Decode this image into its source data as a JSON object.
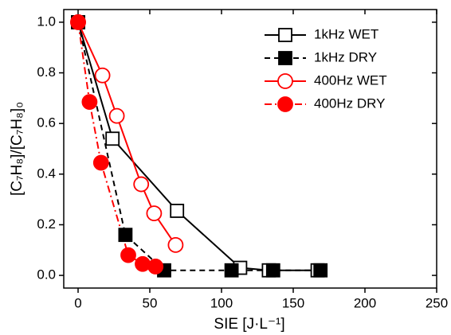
{
  "chart_data": {
    "type": "line",
    "x_label": "SIE [J·L⁻¹]",
    "y_label": "[C₇H₈]/[C₇H₈]₀",
    "xlim": [
      -10,
      250
    ],
    "xticks": [
      0,
      50,
      100,
      150,
      200,
      250
    ],
    "ylim": [
      -0.05,
      1.05
    ],
    "yticks": [
      {
        "value": 0,
        "label": "0.0"
      },
      0.2,
      0.4,
      0.6,
      0.8,
      {
        "value": 1,
        "label": "1.0"
      }
    ],
    "legend": "upper right",
    "series": [
      {
        "name": "1kHz WET",
        "color": "#000000",
        "marker": "square",
        "filled": false,
        "dash": "solid",
        "x": [
          0,
          24,
          69,
          113,
          133,
          167
        ],
        "values": [
          1.0,
          0.54,
          0.255,
          0.03,
          0.02,
          0.02
        ]
      },
      {
        "name": "1kHz DRY",
        "color": "#000000",
        "marker": "square",
        "filled": true,
        "dash": "dashed",
        "x": [
          0,
          33,
          60,
          107,
          136,
          169
        ],
        "values": [
          1.0,
          0.16,
          0.02,
          0.02,
          0.02,
          0.02
        ]
      },
      {
        "name": "400Hz WET",
        "color": "#ff0000",
        "marker": "circle",
        "filled": false,
        "dash": "solid",
        "x": [
          0,
          17,
          27,
          44,
          53,
          68
        ],
        "values": [
          1.0,
          0.79,
          0.63,
          0.36,
          0.245,
          0.12
        ]
      },
      {
        "name": "400Hz DRY",
        "color": "#ff0000",
        "marker": "circle",
        "filled": true,
        "dash": "dashdot",
        "x": [
          0,
          8,
          16,
          35,
          45,
          54
        ],
        "values": [
          1.0,
          0.685,
          0.445,
          0.08,
          0.045,
          0.035
        ]
      }
    ]
  }
}
